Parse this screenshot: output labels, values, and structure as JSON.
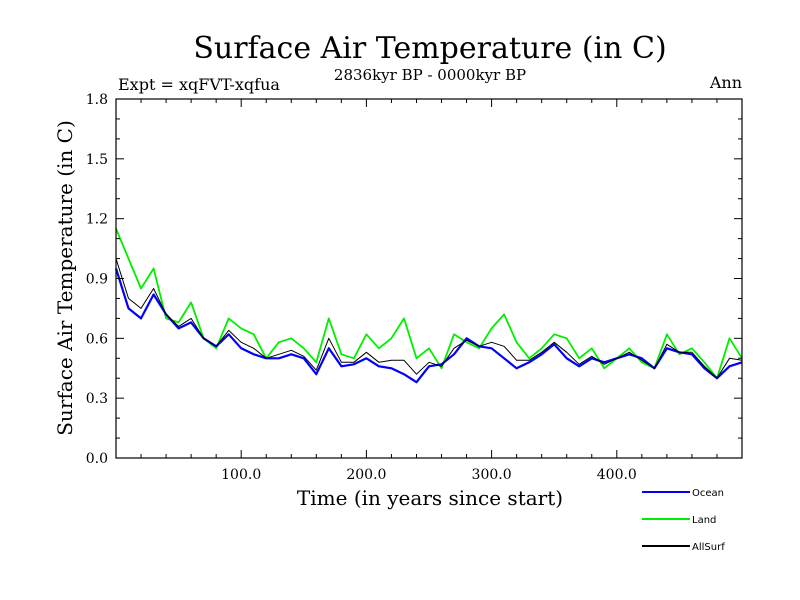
{
  "chart_data": {
    "type": "line",
    "title": "Surface Air Temperature (in C)",
    "subtitle": "2836kyr BP - 0000kyr BP",
    "left_label": "Expt = xqFVT-xqfua",
    "right_label": "Ann",
    "xlabel": "Time (in years since start)",
    "ylabel": "Surface Air Temperature (in C)",
    "xlim": [
      0,
      500
    ],
    "ylim": [
      0,
      1.8
    ],
    "x_ticks": [
      100,
      200,
      300,
      400
    ],
    "x_tick_labels": [
      "100.0",
      "200.0",
      "300.0",
      "400.0"
    ],
    "y_ticks": [
      0,
      0.3,
      0.6,
      0.9,
      1.2,
      1.5,
      1.8
    ],
    "y_tick_labels": [
      "0.0",
      "0.3",
      "0.6",
      "0.9",
      "1.2",
      "1.5",
      "1.8"
    ],
    "x_step": 10,
    "series": [
      {
        "name": "Land",
        "color": "#00ee00",
        "values": [
          1.15,
          1.0,
          0.85,
          0.95,
          0.7,
          0.68,
          0.78,
          0.6,
          0.55,
          0.7,
          0.65,
          0.62,
          0.5,
          0.58,
          0.6,
          0.55,
          0.48,
          0.7,
          0.52,
          0.5,
          0.62,
          0.55,
          0.6,
          0.7,
          0.5,
          0.55,
          0.45,
          0.62,
          0.58,
          0.55,
          0.65,
          0.72,
          0.58,
          0.5,
          0.55,
          0.62,
          0.6,
          0.5,
          0.55,
          0.45,
          0.5,
          0.55,
          0.48,
          0.45,
          0.62,
          0.52,
          0.55,
          0.48,
          0.4,
          0.6,
          0.5
        ]
      },
      {
        "name": "Ocean",
        "color": "#0000ff",
        "values": [
          0.95,
          0.75,
          0.7,
          0.82,
          0.72,
          0.65,
          0.68,
          0.6,
          0.56,
          0.62,
          0.55,
          0.52,
          0.5,
          0.5,
          0.52,
          0.5,
          0.42,
          0.55,
          0.46,
          0.47,
          0.5,
          0.46,
          0.45,
          0.42,
          0.38,
          0.46,
          0.47,
          0.52,
          0.6,
          0.56,
          0.55,
          0.5,
          0.45,
          0.48,
          0.52,
          0.57,
          0.5,
          0.46,
          0.5,
          0.48,
          0.5,
          0.52,
          0.5,
          0.45,
          0.55,
          0.53,
          0.52,
          0.45,
          0.4,
          0.46,
          0.48
        ]
      },
      {
        "name": "AllSurf",
        "color": "#000000",
        "values": [
          1.0,
          0.8,
          0.75,
          0.85,
          0.72,
          0.66,
          0.7,
          0.6,
          0.56,
          0.64,
          0.58,
          0.55,
          0.5,
          0.52,
          0.54,
          0.51,
          0.44,
          0.6,
          0.48,
          0.48,
          0.53,
          0.48,
          0.49,
          0.49,
          0.42,
          0.48,
          0.46,
          0.55,
          0.59,
          0.56,
          0.58,
          0.56,
          0.49,
          0.49,
          0.53,
          0.58,
          0.53,
          0.47,
          0.51,
          0.47,
          0.5,
          0.53,
          0.49,
          0.45,
          0.57,
          0.53,
          0.53,
          0.46,
          0.4,
          0.5,
          0.49
        ]
      }
    ]
  }
}
